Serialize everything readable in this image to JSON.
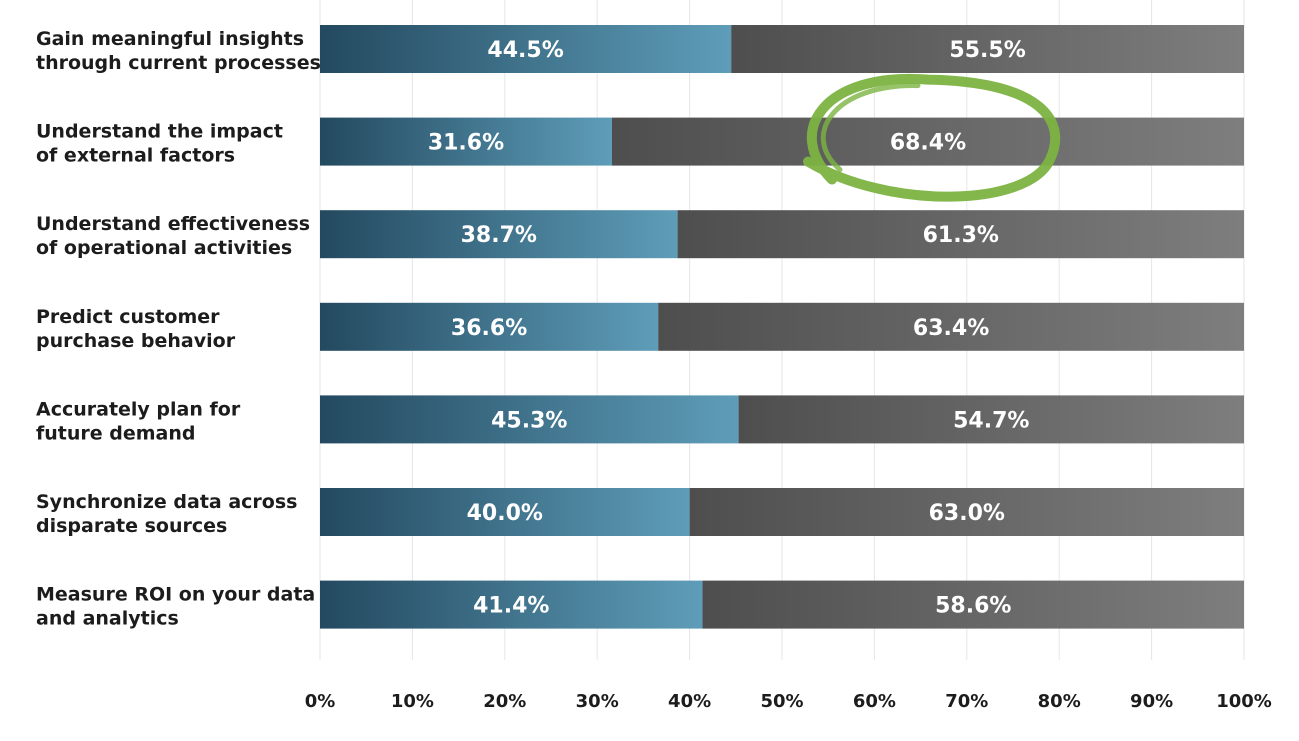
{
  "chart_data": {
    "type": "bar",
    "orientation": "horizontal",
    "stacked": true,
    "categories": [
      [
        "Gain meaningful insights",
        "through current processes"
      ],
      [
        "Understand the impact",
        "of external factors"
      ],
      [
        "Understand effectiveness",
        "of operational activities"
      ],
      [
        "Predict customer",
        "purchase behavior"
      ],
      [
        "Accurately plan for",
        "future demand"
      ],
      [
        "Synchronize data across",
        "disparate sources"
      ],
      [
        "Measure ROI on your data",
        "and analytics"
      ]
    ],
    "series": [
      {
        "values": [
          44.5,
          31.6,
          38.7,
          36.6,
          45.3,
          40.0,
          41.4
        ],
        "labels": [
          "44.5%",
          "31.6%",
          "38.7%",
          "36.6%",
          "45.3%",
          "40.0%",
          "41.4%"
        ],
        "color_start": "#23495f",
        "color_end": "#5e9db9"
      },
      {
        "values": [
          55.5,
          68.4,
          61.3,
          63.4,
          54.7,
          63.0,
          58.6
        ],
        "labels": [
          "55.5%",
          "68.4%",
          "61.3%",
          "63.4%",
          "54.7%",
          "63.0%",
          "58.6%"
        ],
        "color_start": "#4e4e4e",
        "color_end": "#7e7e7e"
      }
    ],
    "xlim": [
      0,
      100
    ],
    "x_ticks": [
      "0%",
      "10%",
      "20%",
      "30%",
      "40%",
      "50%",
      "60%",
      "70%",
      "80%",
      "90%",
      "100%"
    ],
    "grid": true,
    "highlight": {
      "category_index": 1,
      "series_index": 1,
      "color": "#7cb342"
    }
  }
}
